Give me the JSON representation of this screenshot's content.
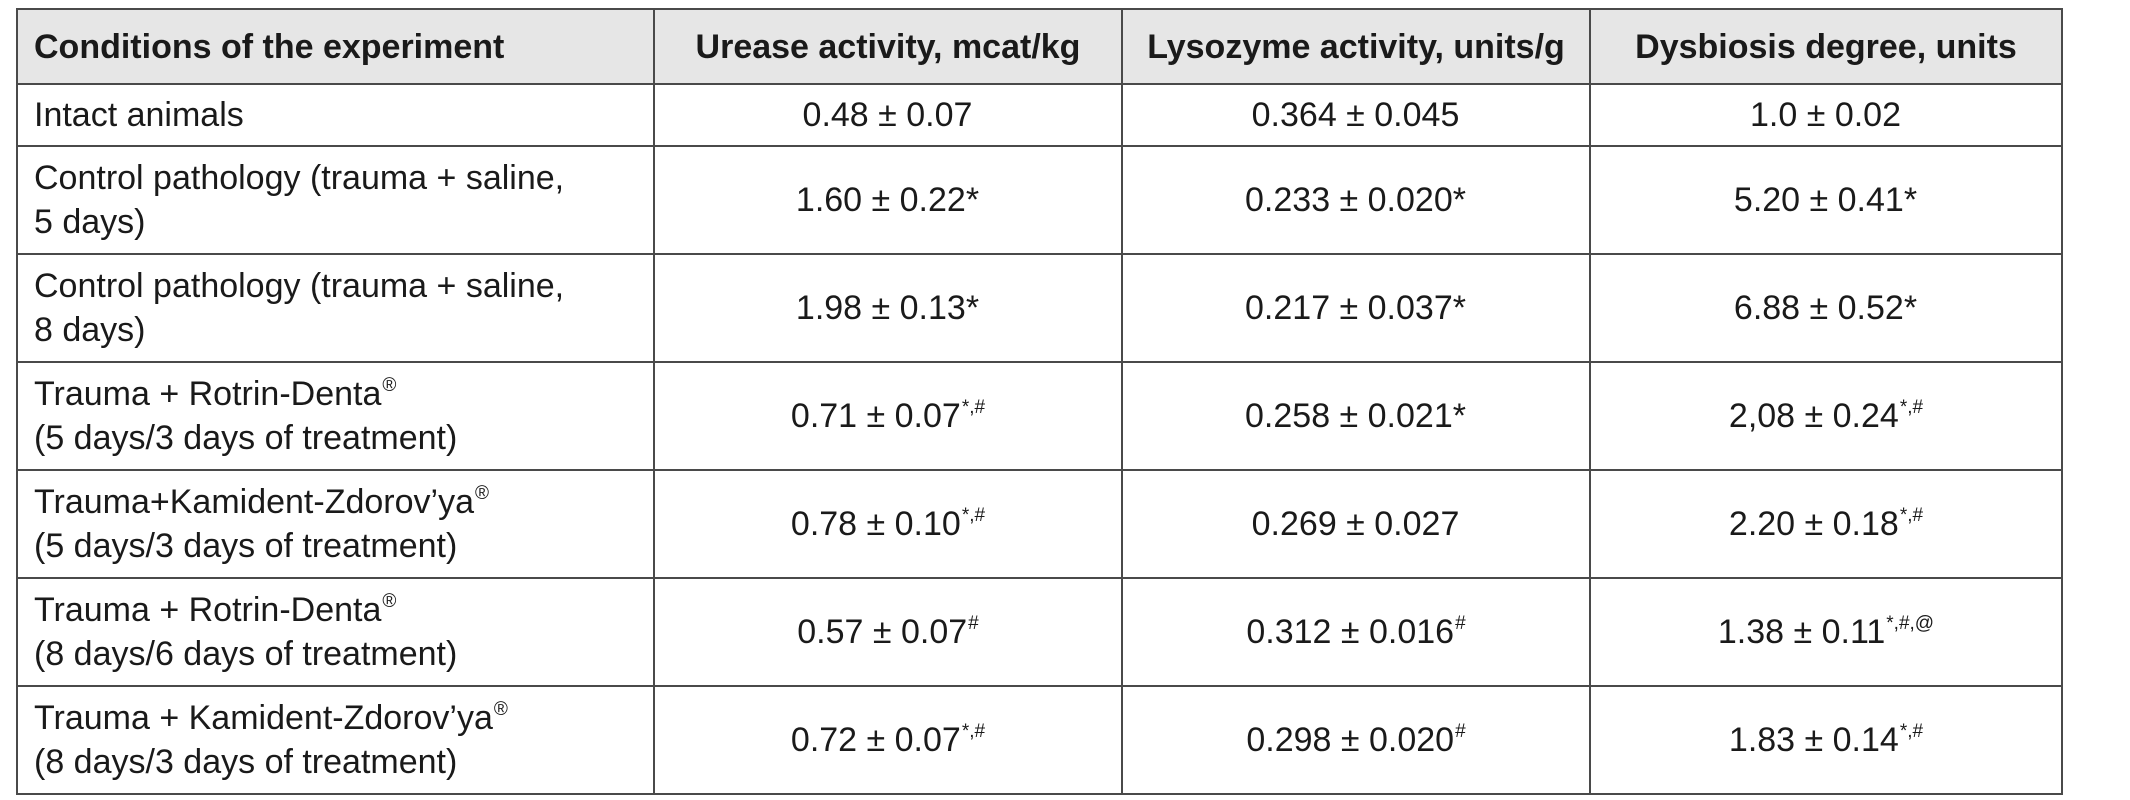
{
  "table": {
    "headers": [
      "Conditions of the experiment",
      "Urease activity, mcat/kg",
      "Lysozyme activity, units/g",
      "Dysbiosis degree, units"
    ],
    "rows": [
      {
        "condition": {
          "line1": "Intact animals",
          "line1_sup": "",
          "line2": ""
        },
        "urease": {
          "value": "0.48 ± 0.07",
          "marks": ""
        },
        "lysozyme": {
          "value": "0.364 ± 0.045",
          "marks": ""
        },
        "dysbiosis": {
          "value": "1.0 ± 0.02",
          "marks": ""
        }
      },
      {
        "condition": {
          "line1": "Control pathology (trauma + saline,",
          "line1_sup": "",
          "line2": "5 days)"
        },
        "urease": {
          "value": "1.60 ± 0.22*",
          "marks": ""
        },
        "lysozyme": {
          "value": "0.233 ± 0.020*",
          "marks": ""
        },
        "dysbiosis": {
          "value": "5.20 ± 0.41*",
          "marks": ""
        }
      },
      {
        "condition": {
          "line1": "Control pathology (trauma + saline,",
          "line1_sup": "",
          "line2": "8 days)"
        },
        "urease": {
          "value": "1.98 ± 0.13*",
          "marks": ""
        },
        "lysozyme": {
          "value": "0.217 ± 0.037*",
          "marks": ""
        },
        "dysbiosis": {
          "value": "6.88 ± 0.52*",
          "marks": ""
        }
      },
      {
        "condition": {
          "line1": "Trauma + Rotrin-Denta",
          "line1_sup": "®",
          "line2": "(5 days/3 days of treatment)"
        },
        "urease": {
          "value": "0.71 ± 0.07",
          "marks": "*,#"
        },
        "lysozyme": {
          "value": "0.258 ± 0.021*",
          "marks": ""
        },
        "dysbiosis": {
          "value": "2,08 ± 0.24",
          "marks": "*,#"
        }
      },
      {
        "condition": {
          "line1": "Trauma+Kamident-Zdorov’ya",
          "line1_sup": "®",
          "line2": "(5 days/3 days of treatment)"
        },
        "urease": {
          "value": "0.78 ± 0.10",
          "marks": "*,#"
        },
        "lysozyme": {
          "value": "0.269 ± 0.027",
          "marks": ""
        },
        "dysbiosis": {
          "value": "2.20 ± 0.18",
          "marks": "*,#"
        }
      },
      {
        "condition": {
          "line1": "Trauma + Rotrin-Denta",
          "line1_sup": "®",
          "line2": "(8 days/6 days of treatment)"
        },
        "urease": {
          "value": "0.57 ± 0.07",
          "marks": "#"
        },
        "lysozyme": {
          "value": "0.312 ± 0.016",
          "marks": "#"
        },
        "dysbiosis": {
          "value": "1.38 ± 0.11",
          "marks": "*,#,@"
        }
      },
      {
        "condition": {
          "line1": "Trauma + Kamident-Zdorov’ya",
          "line1_sup": "®",
          "line2": "(8 days/3 days of treatment)"
        },
        "urease": {
          "value": "0.72 ± 0.07",
          "marks": "*,#"
        },
        "lysozyme": {
          "value": "0.298 ± 0.020",
          "marks": "#"
        },
        "dysbiosis": {
          "value": "1.83 ± 0.14",
          "marks": "*,#"
        }
      }
    ]
  }
}
